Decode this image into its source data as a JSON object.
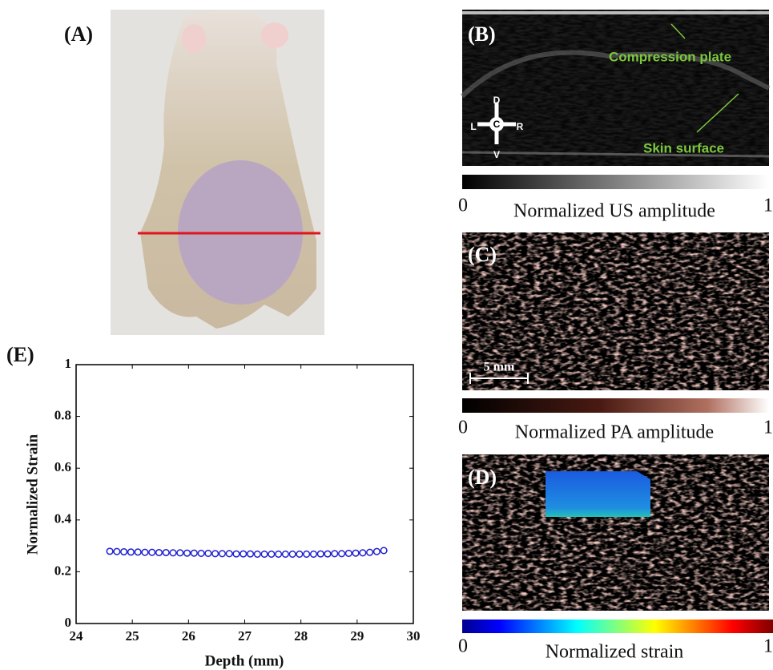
{
  "panels": {
    "a": "(A)",
    "b": "(B)",
    "c": "(C)",
    "d": "(D)"
  },
  "annotations": {
    "compression": "Compression plate",
    "skin": "Skin surface",
    "scale": "5 mm",
    "orientation": {
      "dorsal": "D",
      "left": "L",
      "center": "C",
      "right": "R",
      "ventral": "V"
    }
  },
  "colorbars": [
    {
      "label": "Normalized US amplitude",
      "range": [
        0,
        1
      ]
    },
    {
      "label": "Normalized PA amplitude",
      "range": [
        0,
        1
      ]
    },
    {
      "label": "Normalized strain",
      "range": [
        0,
        1
      ]
    }
  ],
  "chart_data": {
    "type": "scatter",
    "panel_label": "(E)",
    "x_label": "Depth (mm)",
    "y_label": "Normalized Strain",
    "xlim": [
      24,
      30
    ],
    "ylim": [
      0,
      1
    ],
    "xticks": [
      24,
      25,
      26,
      27,
      28,
      29,
      30
    ],
    "yticks": [
      0,
      0.2,
      0.4,
      0.6,
      0.8,
      1
    ],
    "series": [
      {
        "color": "#1f1fd0",
        "x": [
          24.6,
          24.725,
          24.85,
          24.975,
          25.1,
          25.225,
          25.35,
          25.475,
          25.6,
          25.725,
          25.85,
          25.975,
          26.1,
          26.225,
          26.35,
          26.475,
          26.6,
          26.725,
          26.85,
          26.975,
          27.1,
          27.225,
          27.35,
          27.475,
          27.6,
          27.725,
          27.85,
          27.975,
          28.1,
          28.225,
          28.35,
          28.475,
          28.6,
          28.725,
          28.85,
          28.975,
          29.1,
          29.225,
          29.35,
          29.475
        ],
        "values": [
          0.279,
          0.278,
          0.277,
          0.276,
          0.276,
          0.275,
          0.275,
          0.274,
          0.274,
          0.273,
          0.273,
          0.272,
          0.272,
          0.271,
          0.271,
          0.27,
          0.27,
          0.27,
          0.269,
          0.269,
          0.269,
          0.268,
          0.268,
          0.268,
          0.268,
          0.268,
          0.268,
          0.268,
          0.268,
          0.268,
          0.269,
          0.269,
          0.27,
          0.27,
          0.271,
          0.272,
          0.273,
          0.275,
          0.278,
          0.282
        ]
      }
    ]
  }
}
